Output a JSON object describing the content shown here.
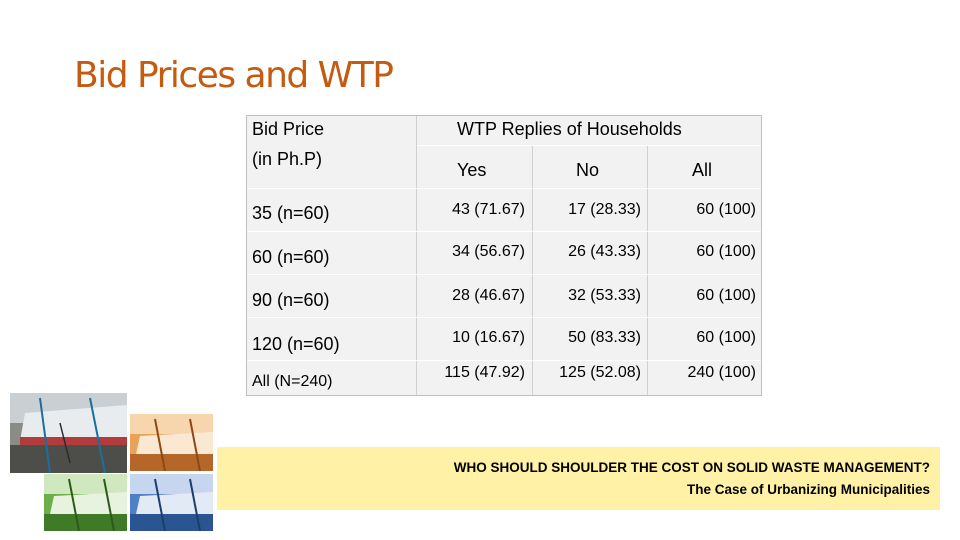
{
  "title": "Bid Prices and WTP",
  "table": {
    "header_col1": [
      "Bid Price",
      "(in Ph.P)"
    ],
    "header_group": "WTP Replies of Households",
    "sub_headers": [
      "Yes",
      "No",
      "All"
    ],
    "rows": [
      {
        "label": "35 (n=60)",
        "yes": "43 (71.67)",
        "no": "17 (28.33)",
        "all": "60 (100)"
      },
      {
        "label": "60 (n=60)",
        "yes": "34 (56.67)",
        "no": "26 (43.33)",
        "all": "60 (100)"
      },
      {
        "label": "90 (n=60)",
        "yes": "28 (46.67)",
        "no": "32 (53.33)",
        "all": "60 (100)"
      },
      {
        "label": "120 (n=60)",
        "yes": "10 (16.67)",
        "no": "50 (83.33)",
        "all": "60 (100)"
      },
      {
        "label": "All (N=240)",
        "yes": "115 (47.92)",
        "no": "125 (52.08)",
        "all": "240 (100)"
      }
    ]
  },
  "footer": {
    "line1": "WHO SHOULD SHOULDER THE COST ON SOLID WASTE MANAGEMENT?",
    "line2": "The Case of Urbanizing Municipalities"
  },
  "colors": {
    "title": "#C55A11",
    "table_bg": "#F2F2F2",
    "footer_bg": "#FFF2A6",
    "photo_orange": "#E8A25A",
    "photo_green": "#6CAF4A",
    "photo_blue": "#4F7FC4"
  }
}
